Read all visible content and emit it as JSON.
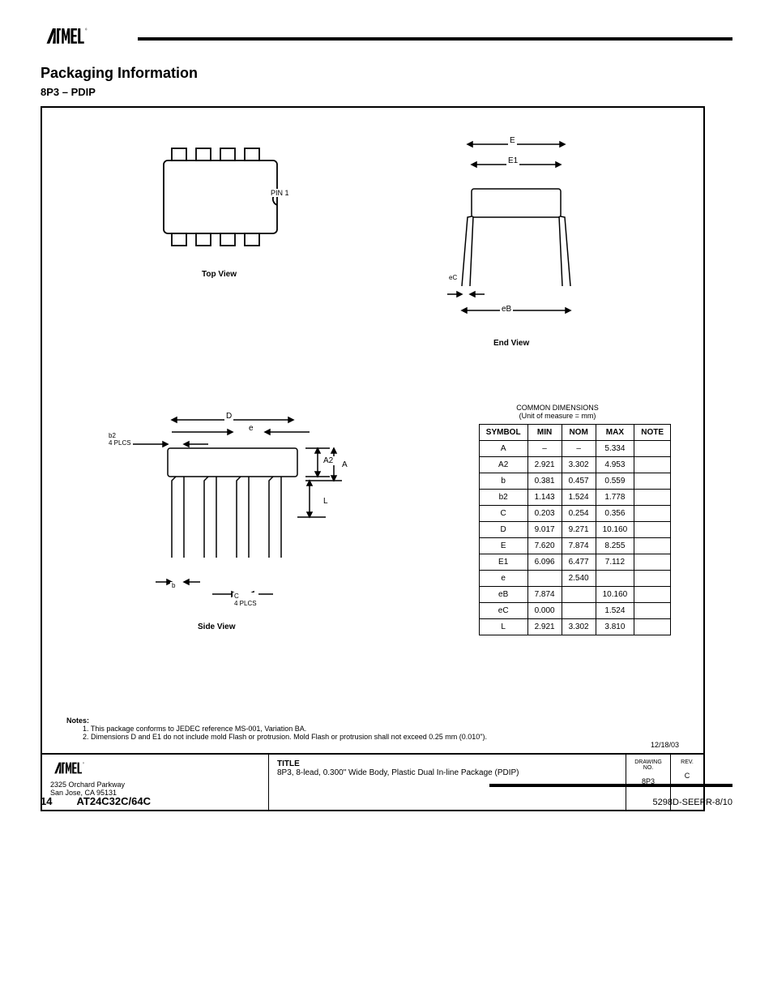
{
  "header": {
    "logo_alt": "ATMEL",
    "registered": "®"
  },
  "section_title": "Packaging Information",
  "spec_title": "8P3 – PDIP",
  "top_view_label": "Top View",
  "side_view_label": "Side View",
  "end_view_label": "End View",
  "pin1_label": "PIN 1",
  "dims": {
    "E": "E",
    "E1": "E1",
    "D": "D",
    "e": "e",
    "b2": "b2",
    "A2": "A2",
    "A": "A",
    "L": "L",
    "b": "b",
    "C": "C",
    "eB": "eB",
    "eC": "eC"
  },
  "table": {
    "header": [
      "SYMBOL",
      "MIN",
      "NOM",
      "MAX",
      "NOTE"
    ],
    "rows": [
      [
        "A",
        "–",
        "–",
        "5.334",
        ""
      ],
      [
        "A2",
        "2.921",
        "3.302",
        "4.953",
        ""
      ],
      [
        "b",
        "0.381",
        "0.457",
        "0.559",
        ""
      ],
      [
        "b2",
        "1.143",
        "1.524",
        "1.778",
        ""
      ],
      [
        "C",
        "0.203",
        "0.254",
        "0.356",
        ""
      ],
      [
        "D",
        "9.017",
        "9.271",
        "10.160",
        ""
      ],
      [
        "E",
        "7.620",
        "7.874",
        "8.255",
        ""
      ],
      [
        "E1",
        "6.096",
        "6.477",
        "7.112",
        ""
      ],
      [
        "e",
        "",
        "2.540",
        "",
        ""
      ],
      [
        "eB",
        "7.874",
        "",
        "10.160",
        ""
      ],
      [
        "eC",
        "0.000",
        "",
        "1.524",
        ""
      ],
      [
        "L",
        "2.921",
        "3.302",
        "3.810",
        ""
      ]
    ],
    "dimension_note": "COMMON DIMENSIONS",
    "unit_note": "(Unit of measure = mm)"
  },
  "notes_label": "Notes:",
  "notes": [
    "1. This package conforms to JEDEC reference MS-001, Variation BA.",
    "2. Dimensions D and E1 do not include mold Flash or protrusion. Mold Flash or protrusion shall not exceed 0.25 mm (0.010\")."
  ],
  "title_block": {
    "addr1": "2325 Orchard Parkway",
    "addr2": "San Jose, CA 95131",
    "title_label": "TITLE",
    "title": "8P3, 8-lead, 0.300\" Wide Body, Plastic Dual In-line Package (PDIP)",
    "drawing_label": "DRAWING NO.",
    "drawing_no": "8P3",
    "rev_label": "REV.",
    "rev": "C",
    "date": "12/18/03"
  },
  "date_line": "12/18/03",
  "footer": {
    "page": "14",
    "doc_code": "AT24C32C/64C",
    "rev": "5298D-SEEPR-8/10"
  },
  "style": {
    "stroke": "#000000",
    "stroke_width": 1.5,
    "font_size_small": 10,
    "font_size_title": 18,
    "table_border": "#000000"
  }
}
